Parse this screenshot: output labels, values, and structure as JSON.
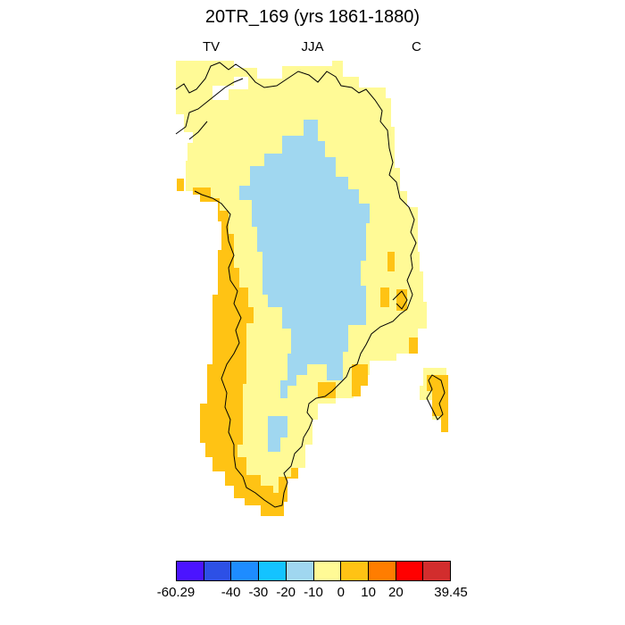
{
  "title": "20TR_169 (yrs 1861-1880)",
  "subtitle": {
    "left": "TV",
    "center": "JJA",
    "right": "C"
  },
  "region": "Greenland",
  "legend": {
    "colors": [
      "#4b14ff",
      "#2d50e6",
      "#1e8cff",
      "#14c3ff",
      "#a0d7f0",
      "#fffa96",
      "#ffc314",
      "#ff7d00",
      "#ff0000",
      "#d22d2d"
    ],
    "labels": [
      "-60.29",
      "-40",
      "-30",
      "-20",
      "-10",
      "0",
      "10",
      "20",
      "39.45"
    ]
  },
  "chart_data": {
    "type": "heatmap",
    "title": "20TR_169 (yrs 1861-1880)",
    "variable": "TV",
    "season": "JJA",
    "units": "C",
    "color_levels": [
      -60.29,
      -40,
      -30,
      -20,
      -10,
      0,
      10,
      20,
      39.45
    ],
    "categories_present": [
      {
        "range": "-10 to 0",
        "color": "#a0d7f0",
        "area": "central ice sheet interior"
      },
      {
        "range": "0 to 10",
        "color": "#fffa96",
        "area": "most of the ice margin and northern coast"
      },
      {
        "range": "10 to 20",
        "color": "#ffc314",
        "area": "southwestern coast, southern tip and isolated eastern coastal cells"
      }
    ]
  }
}
